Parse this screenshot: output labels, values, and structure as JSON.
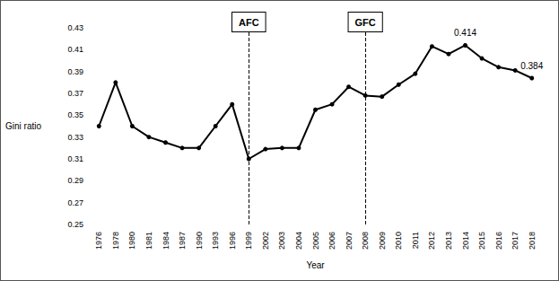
{
  "chart_data": {
    "type": "line",
    "y_label": "Gini ratio",
    "x_label": "Year",
    "categories": [
      "1976",
      "1978",
      "1980",
      "1981",
      "1984",
      "1987",
      "1990",
      "1993",
      "1996",
      "1999",
      "2002",
      "2003",
      "2004",
      "2005",
      "2006",
      "2007",
      "2008",
      "2009",
      "2010",
      "2011",
      "2012",
      "2013",
      "2014",
      "2015",
      "2016",
      "2017",
      "2018"
    ],
    "values": [
      0.34,
      0.38,
      0.34,
      0.33,
      0.325,
      0.32,
      0.32,
      0.34,
      0.36,
      0.31,
      0.319,
      0.32,
      0.32,
      0.355,
      0.36,
      0.376,
      0.368,
      0.367,
      0.378,
      0.388,
      0.413,
      0.406,
      0.414,
      0.402,
      0.394,
      0.391,
      0.384
    ],
    "color": "#000000",
    "marker": "circle",
    "ylim": [
      0.25,
      0.43
    ],
    "yticks": [
      0.25,
      0.27,
      0.29,
      0.31,
      0.33,
      0.35,
      0.37,
      0.39,
      0.41,
      0.43
    ],
    "grid": false,
    "vlines": [
      {
        "category": "1999",
        "label": "AFC"
      },
      {
        "category": "2008",
        "label": "GFC"
      }
    ],
    "annotations": [
      {
        "category": "2014",
        "text": "0.414"
      },
      {
        "category": "2018",
        "text": "0.384"
      }
    ]
  }
}
